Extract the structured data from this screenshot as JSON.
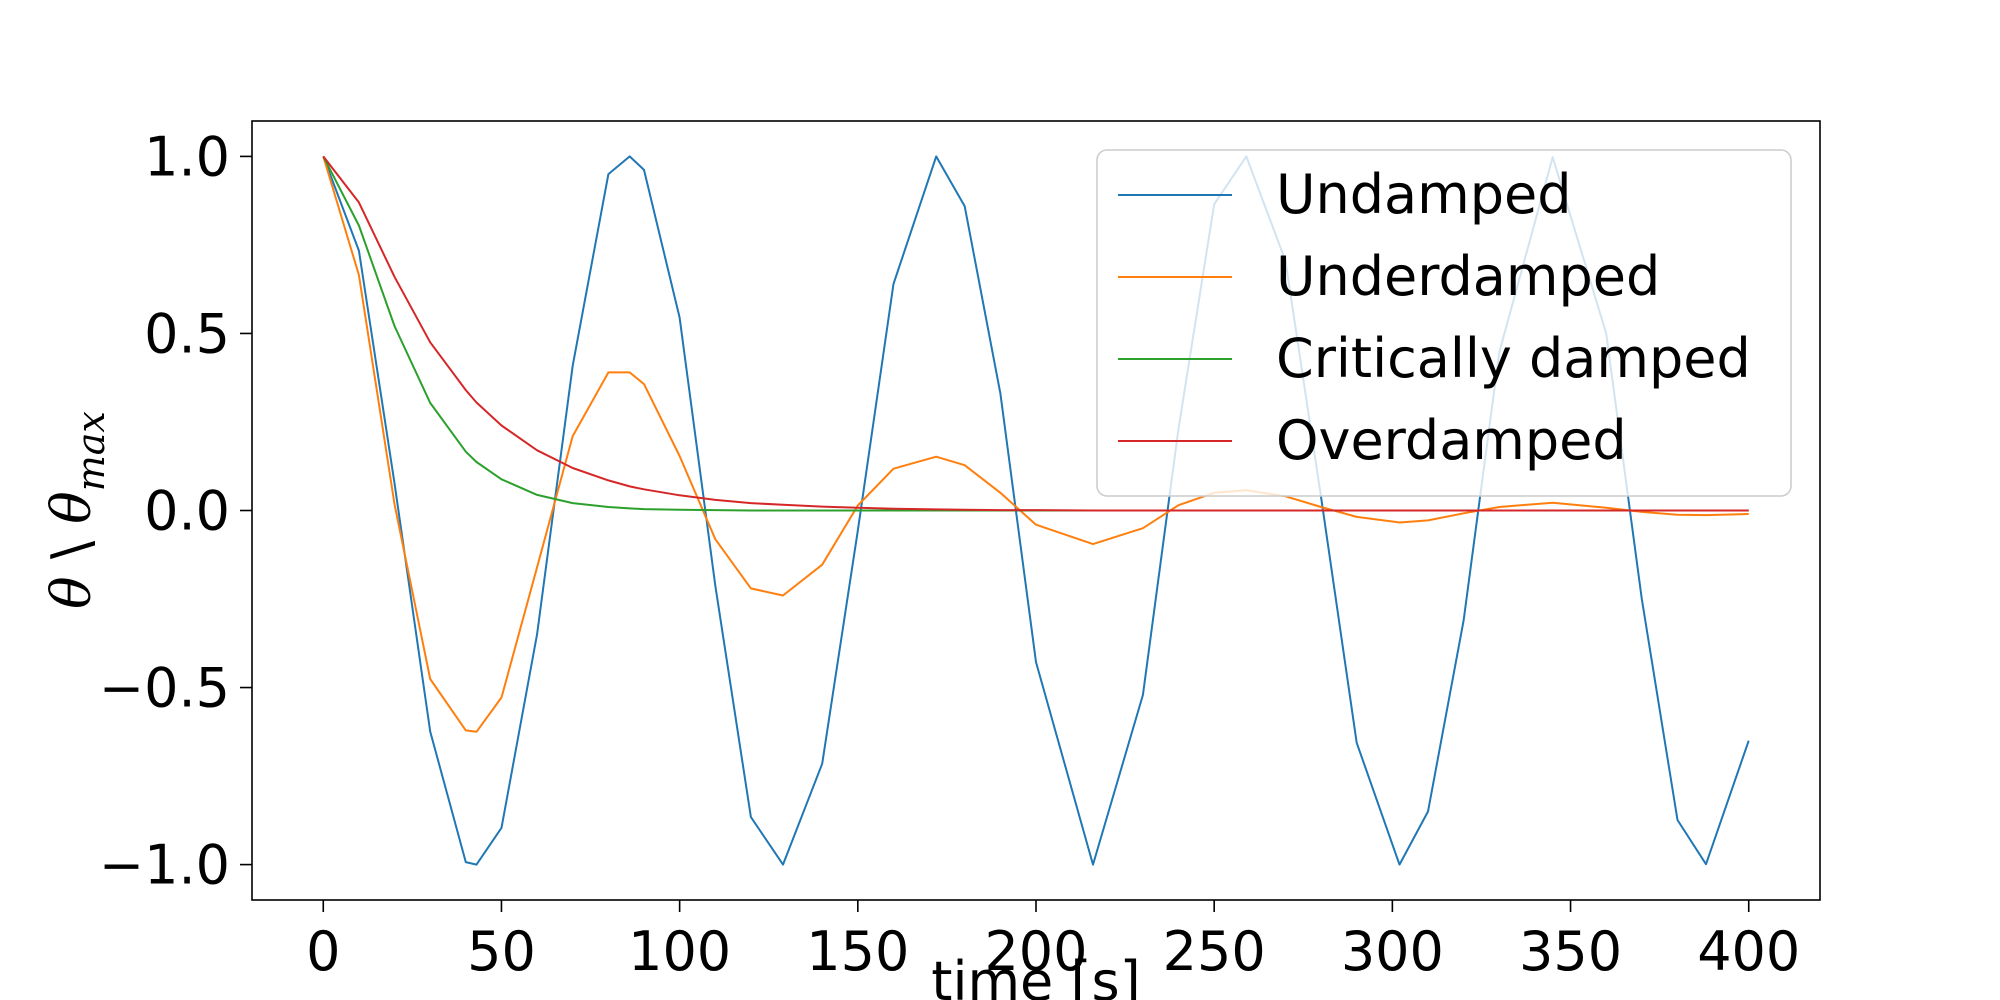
{
  "chart_data": {
    "type": "line",
    "title": "",
    "xlabel": "time [s]",
    "ylabel": {
      "theta": "θ",
      "separator": " \\ ",
      "theta_max": "θ",
      "subscript": "max"
    },
    "xlim": [
      -20,
      420
    ],
    "ylim": [
      -1.1,
      1.1
    ],
    "xticks": [
      0,
      50,
      100,
      150,
      200,
      250,
      300,
      350,
      400
    ],
    "xtick_labels": [
      "0",
      "50",
      "100",
      "150",
      "200",
      "250",
      "300",
      "350",
      "400"
    ],
    "yticks": [
      1.0,
      0.5,
      0.0,
      -0.5,
      -1.0
    ],
    "ytick_labels": [
      "1.0",
      "0.5",
      "0.0",
      "−0.5",
      "−1.0"
    ],
    "grid": false,
    "legend_position": "top-right",
    "x": [
      0,
      10,
      20,
      30,
      40,
      43,
      50,
      60,
      70,
      80,
      86,
      90,
      100,
      110,
      120,
      129,
      140,
      150,
      160,
      172,
      180,
      190,
      200,
      216,
      230,
      240,
      250,
      259,
      270,
      280,
      290,
      302,
      310,
      320,
      330,
      345,
      360,
      370,
      380,
      388,
      400
    ],
    "series": [
      {
        "name": "Undamped",
        "color": "#1f77b4",
        "values": [
          1.0,
          0.734,
          0.077,
          -0.624,
          -0.993,
          -1.0,
          -0.896,
          -0.349,
          0.409,
          0.95,
          1.0,
          0.962,
          0.545,
          -0.212,
          -0.866,
          -1.0,
          -0.715,
          -0.057,
          0.64,
          1.0,
          0.859,
          0.33,
          -0.428,
          -1.0,
          -0.521,
          0.231,
          0.865,
          1.0,
          0.705,
          0.037,
          -0.656,
          -1.0,
          -0.85,
          -0.311,
          0.447,
          0.998,
          0.5,
          -0.25,
          -0.874,
          -0.999,
          -0.65
        ]
      },
      {
        "name": "Underdamped",
        "color": "#ff7f0e",
        "values": [
          1.0,
          0.665,
          0.018,
          -0.476,
          -0.621,
          -0.625,
          -0.528,
          -0.16,
          0.21,
          0.39,
          0.39,
          0.357,
          0.154,
          -0.081,
          -0.22,
          -0.24,
          -0.153,
          0.014,
          0.118,
          0.152,
          0.128,
          0.05,
          -0.04,
          -0.095,
          -0.05,
          0.015,
          0.05,
          0.057,
          0.04,
          0.01,
          -0.018,
          -0.034,
          -0.028,
          -0.008,
          0.01,
          0.022,
          0.008,
          -0.004,
          -0.012,
          -0.013,
          -0.01
        ]
      },
      {
        "name": "Critically damped",
        "color": "#2ca02c",
        "values": [
          1.0,
          0.805,
          0.521,
          0.304,
          0.166,
          0.137,
          0.088,
          0.044,
          0.021,
          0.01,
          0.006,
          0.004,
          0.002,
          0.001,
          0.0,
          0.0,
          0.0,
          0.0,
          0.0,
          0.0,
          0.0,
          0.0,
          0.0,
          0.0,
          0.0,
          0.0,
          0.0,
          0.0,
          0.0,
          0.0,
          0.0,
          0.0,
          0.0,
          0.0,
          0.0,
          0.0,
          0.0,
          0.0,
          0.0,
          0.0,
          0.0
        ]
      },
      {
        "name": "Overdamped",
        "color": "#d62728",
        "values": [
          1.0,
          0.87,
          0.66,
          0.475,
          0.34,
          0.305,
          0.24,
          0.17,
          0.12,
          0.085,
          0.068,
          0.06,
          0.043,
          0.03,
          0.021,
          0.016,
          0.011,
          0.008,
          0.005,
          0.003,
          0.002,
          0.001,
          0.001,
          0.0,
          0.0,
          0.0,
          0.0,
          0.0,
          0.0,
          0.0,
          0.0,
          0.0,
          0.0,
          0.0,
          0.0,
          0.0,
          0.0,
          0.0,
          0.0,
          0.0,
          0.0
        ]
      }
    ]
  }
}
